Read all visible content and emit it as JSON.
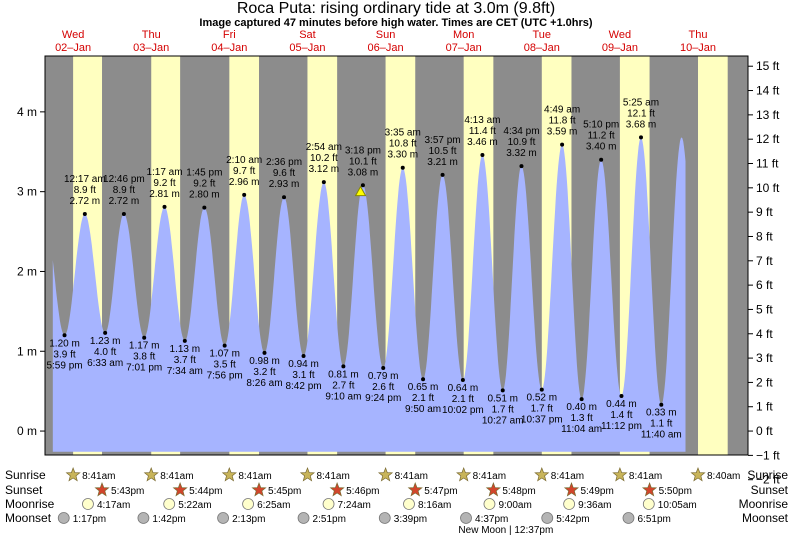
{
  "header": {
    "title": "Roca Puta: rising  ordinary tide at 3.0m (9.8ft)",
    "subtitle": "Image captured 47 minutes before high water. Times are CET (UTC +1.0hrs)"
  },
  "chart_data": {
    "type": "area",
    "days": [
      {
        "weekday": "Wed",
        "date": "02–Jan"
      },
      {
        "weekday": "Thu",
        "date": "03–Jan"
      },
      {
        "weekday": "Fri",
        "date": "04–Jan"
      },
      {
        "weekday": "Sat",
        "date": "05–Jan"
      },
      {
        "weekday": "Sun",
        "date": "06–Jan"
      },
      {
        "weekday": "Mon",
        "date": "07–Jan"
      },
      {
        "weekday": "Tue",
        "date": "08–Jan"
      },
      {
        "weekday": "Wed",
        "date": "09–Jan"
      },
      {
        "weekday": "Thu",
        "date": "10–Jan"
      }
    ],
    "y_left": {
      "unit": "m",
      "ticks": [
        "0 m",
        "1 m",
        "2 m",
        "3 m",
        "4 m"
      ],
      "values": [
        0,
        1,
        2,
        3,
        4
      ]
    },
    "y_right": {
      "unit": "ft",
      "ticks": [
        "−2 ft",
        "−1 ft",
        "0 ft",
        "1 ft",
        "2 ft",
        "3 ft",
        "4 ft",
        "5 ft",
        "6 ft",
        "7 ft",
        "8 ft",
        "9 ft",
        "10 ft",
        "11 ft",
        "12 ft",
        "13 ft",
        "14 ft",
        "15 ft"
      ],
      "values": [
        -2,
        -1,
        0,
        1,
        2,
        3,
        4,
        5,
        6,
        7,
        8,
        9,
        10,
        11,
        12,
        13,
        14,
        15
      ]
    },
    "ylim_m": [
      -0.3,
      4.7
    ],
    "xlim_days": [
      0,
      9
    ],
    "tides": [
      {
        "type": "low",
        "day": 0.25,
        "m": 1.2,
        "labels": [
          "1.20 m",
          "3.9 ft",
          "5:59 pm"
        ]
      },
      {
        "type": "high",
        "day": 0.51,
        "m": 2.72,
        "labels": [
          "12:17 am",
          "8.9 ft",
          "2.72 m"
        ]
      },
      {
        "type": "low",
        "day": 0.77,
        "m": 1.23,
        "labels": [
          "1.23 m",
          "4.0 ft",
          "6:33 am"
        ]
      },
      {
        "type": "high",
        "day": 1.01,
        "m": 2.72,
        "labels": [
          "12:46 pm",
          "8.9 ft",
          "2.72 m"
        ]
      },
      {
        "type": "low",
        "day": 1.27,
        "m": 1.17,
        "labels": [
          "1.17 m",
          "3.8 ft",
          "7:01 pm"
        ]
      },
      {
        "type": "high",
        "day": 1.53,
        "m": 2.81,
        "labels": [
          "1:17 am",
          "9.2 ft",
          "2.81 m"
        ]
      },
      {
        "type": "low",
        "day": 1.79,
        "m": 1.13,
        "labels": [
          "1.13 m",
          "3.7 ft",
          "7:34 am"
        ]
      },
      {
        "type": "high",
        "day": 2.04,
        "m": 2.8,
        "labels": [
          "1:45 pm",
          "9.2 ft",
          "2.80 m"
        ]
      },
      {
        "type": "low",
        "day": 2.3,
        "m": 1.07,
        "labels": [
          "1.07 m",
          "3.5 ft",
          "7:56 pm"
        ]
      },
      {
        "type": "high",
        "day": 2.55,
        "m": 2.96,
        "labels": [
          "2:10 am",
          "9.7 ft",
          "2.96 m"
        ]
      },
      {
        "type": "low",
        "day": 2.81,
        "m": 0.98,
        "labels": [
          "0.98 m",
          "3.2 ft",
          "8:26 am"
        ]
      },
      {
        "type": "high",
        "day": 3.06,
        "m": 2.93,
        "labels": [
          "2:36 pm",
          "9.6 ft",
          "2.93 m"
        ]
      },
      {
        "type": "low",
        "day": 3.31,
        "m": 0.94,
        "labels": [
          "0.94 m",
          "3.1 ft",
          "8:42 pm"
        ]
      },
      {
        "type": "high",
        "day": 3.57,
        "m": 3.12,
        "labels": [
          "2:54 am",
          "10.2 ft",
          "3.12 m"
        ]
      },
      {
        "type": "low",
        "day": 3.82,
        "m": 0.81,
        "labels": [
          "0.81 m",
          "2.7 ft",
          "9:10 am"
        ]
      },
      {
        "type": "high",
        "day": 4.07,
        "m": 3.08,
        "labels": [
          "3:18 pm",
          "10.1 ft",
          "3.08 m"
        ]
      },
      {
        "type": "low",
        "day": 4.33,
        "m": 0.79,
        "labels": [
          "0.79 m",
          "2.6 ft",
          "9:24 pm"
        ]
      },
      {
        "type": "high",
        "day": 4.58,
        "m": 3.3,
        "labels": [
          "3:35 am",
          "10.8 ft",
          "3.30 m"
        ]
      },
      {
        "type": "low",
        "day": 4.84,
        "m": 0.65,
        "labels": [
          "0.65 m",
          "2.1 ft",
          "9:50 am"
        ]
      },
      {
        "type": "high",
        "day": 5.09,
        "m": 3.21,
        "labels": [
          "3:57 pm",
          "10.5 ft",
          "3.21 m"
        ]
      },
      {
        "type": "low",
        "day": 5.35,
        "m": 0.64,
        "labels": [
          "0.64 m",
          "2.1 ft",
          "10:02 pm"
        ]
      },
      {
        "type": "high",
        "day": 5.6,
        "m": 3.46,
        "labels": [
          "4:13 am",
          "11.4 ft",
          "3.46 m"
        ]
      },
      {
        "type": "low",
        "day": 5.86,
        "m": 0.51,
        "labels": [
          "0.51 m",
          "1.7 ft",
          "10:27 am"
        ]
      },
      {
        "type": "high",
        "day": 6.1,
        "m": 3.32,
        "labels": [
          "4:34 pm",
          "10.9 ft",
          "3.32 m"
        ]
      },
      {
        "type": "low",
        "day": 6.36,
        "m": 0.52,
        "labels": [
          "0.52 m",
          "1.7 ft",
          "10:37 pm"
        ]
      },
      {
        "type": "high",
        "day": 6.62,
        "m": 3.59,
        "labels": [
          "4:49 am",
          "11.8 ft",
          "3.59 m"
        ]
      },
      {
        "type": "low",
        "day": 6.87,
        "m": 0.4,
        "labels": [
          "0.40 m",
          "1.3 ft",
          "11:04 am"
        ]
      },
      {
        "type": "high",
        "day": 7.12,
        "m": 3.4,
        "labels": [
          "5:10 pm",
          "11.2 ft",
          "3.40 m"
        ]
      },
      {
        "type": "low",
        "day": 7.38,
        "m": 0.44,
        "labels": [
          "0.44 m",
          "1.4 ft",
          "11:12 pm"
        ]
      },
      {
        "type": "high",
        "day": 7.63,
        "m": 3.68,
        "labels": [
          "5:25 am",
          "12.1 ft",
          "3.68 m"
        ]
      },
      {
        "type": "low",
        "day": 7.89,
        "m": 0.33,
        "labels": [
          "0.33 m",
          "1.1 ft",
          "11:40 am"
        ]
      }
    ],
    "curve_start_day": 0.1,
    "curve_end_day": 8.2,
    "current": {
      "day": 4.04,
      "m": 3.0
    },
    "daylight": [
      [
        0.36,
        0.73
      ],
      [
        1.36,
        1.73
      ],
      [
        2.36,
        2.74
      ],
      [
        3.36,
        3.74
      ],
      [
        4.36,
        4.74
      ],
      [
        5.36,
        5.74
      ],
      [
        6.36,
        6.74
      ],
      [
        7.36,
        7.74
      ],
      [
        8.36,
        8.74
      ]
    ]
  },
  "events": {
    "row_labels": [
      "Sunrise",
      "Sunset",
      "Moonrise",
      "Moonset"
    ],
    "sunrise": [
      {
        "day": 0.36,
        "time": "8:41am"
      },
      {
        "day": 1.36,
        "time": "8:41am"
      },
      {
        "day": 2.36,
        "time": "8:41am"
      },
      {
        "day": 3.36,
        "time": "8:41am"
      },
      {
        "day": 4.36,
        "time": "8:41am"
      },
      {
        "day": 5.36,
        "time": "8:41am"
      },
      {
        "day": 6.36,
        "time": "8:41am"
      },
      {
        "day": 7.36,
        "time": "8:41am"
      },
      {
        "day": 8.36,
        "time": "8:40am"
      }
    ],
    "sunset": [
      {
        "day": 0.73,
        "time": "5:43pm"
      },
      {
        "day": 1.73,
        "time": "5:44pm"
      },
      {
        "day": 2.74,
        "time": "5:45pm"
      },
      {
        "day": 3.74,
        "time": "5:46pm"
      },
      {
        "day": 4.74,
        "time": "5:47pm"
      },
      {
        "day": 5.74,
        "time": "5:48pm"
      },
      {
        "day": 6.74,
        "time": "5:49pm"
      },
      {
        "day": 7.74,
        "time": "5:50pm"
      }
    ],
    "moonrise": [
      {
        "day": 0.55,
        "time": "4:17am"
      },
      {
        "day": 1.59,
        "time": "5:22am"
      },
      {
        "day": 2.6,
        "time": "6:25am"
      },
      {
        "day": 3.63,
        "time": "7:24am"
      },
      {
        "day": 4.66,
        "time": "8:16am"
      },
      {
        "day": 5.69,
        "time": "9:00am"
      },
      {
        "day": 6.71,
        "time": "9:36am"
      },
      {
        "day": 7.73,
        "time": "10:05am"
      }
    ],
    "moonset": [
      {
        "day": 0.24,
        "time": "1:17pm"
      },
      {
        "day": 1.26,
        "time": "1:42pm"
      },
      {
        "day": 2.28,
        "time": "2:13pm"
      },
      {
        "day": 3.31,
        "time": "2:51pm"
      },
      {
        "day": 4.35,
        "time": "3:39pm"
      },
      {
        "day": 5.39,
        "time": "4:37pm"
      },
      {
        "day": 6.43,
        "time": "5:42pm"
      },
      {
        "day": 7.47,
        "time": "6:51pm"
      }
    ],
    "moon_phase": {
      "day": 5.9,
      "text": "New Moon | 12:37pm"
    }
  },
  "colors": {
    "night": "#8c8c8c",
    "day": "#ffffc0",
    "water": "#a6b4ff",
    "day_label": "#d40000",
    "sunrise_star": "#c8b45a",
    "sunset_star": "#d2452c",
    "moonrise": "#ffffcc",
    "moonset": "#b4b4b4"
  }
}
